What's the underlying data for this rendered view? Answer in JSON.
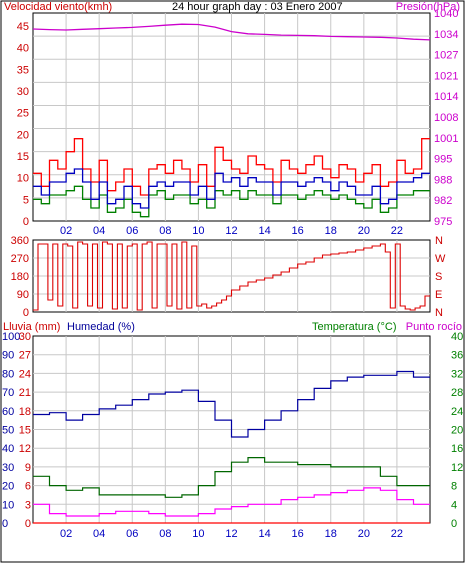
{
  "header": {
    "left_label": "Velocidad viento(kmh)",
    "title": "24 hour graph day : 03 Enero 2007",
    "right_label": "Presión(hPa)"
  },
  "lower_header": {
    "rain_label": "Lluvia (mm)",
    "humidity_label": "Humedad (%)",
    "temperature_label": "Temperatura (°C)",
    "dewpoint_label": "Punto rocío"
  },
  "colors": {
    "wind_gust": "#ff0000",
    "wind_avg": "#008000",
    "wind_speed": "#0000c0",
    "pressure": "#cc00cc",
    "direction": "#dd0000",
    "humidity": "#0000a0",
    "temperature": "#006600",
    "dewpoint": "#ff00ff",
    "rain": "#ff0000",
    "grid": "#c8c8c8",
    "plot_bg": "#ffffff",
    "page_bg": "#ffffff"
  },
  "chart_data": [
    {
      "type": "line",
      "name": "wind-pressure",
      "x_ticks": [
        "02",
        "04",
        "06",
        "08",
        "10",
        "12",
        "14",
        "16",
        "18",
        "20",
        "22"
      ],
      "x_range_hours": [
        0,
        24
      ],
      "y_left": {
        "label": "Velocidad viento(kmh)",
        "ticks": [
          0,
          5,
          10,
          15,
          20,
          25,
          30,
          35,
          40,
          45
        ],
        "range": [
          0,
          48
        ]
      },
      "y_right": {
        "label": "Presión(hPa)",
        "ticks": [
          975,
          982,
          988,
          995,
          1001,
          1008,
          1014,
          1021,
          1027,
          1034,
          1040
        ],
        "range": [
          975,
          1040
        ]
      },
      "series": [
        {
          "key": "gust",
          "color_key": "wind_gust",
          "axis": "left",
          "x": [
            0,
            0.5,
            1,
            1.5,
            2,
            2.5,
            3,
            3.5,
            4,
            4.5,
            5,
            5.5,
            6,
            6.5,
            7,
            7.5,
            8,
            8.5,
            9,
            9.5,
            10,
            10.5,
            11,
            11.5,
            12,
            12.5,
            13,
            13.5,
            14,
            14.5,
            15,
            15.5,
            16,
            16.5,
            17,
            17.5,
            18,
            18.5,
            19,
            19.5,
            20,
            20.5,
            21,
            21.5,
            22,
            22.5,
            23,
            23.5
          ],
          "values": [
            11,
            8,
            14,
            12,
            16,
            19,
            12,
            9,
            14,
            7,
            9,
            12,
            8,
            6,
            12,
            13,
            11,
            14,
            12,
            9,
            13,
            8,
            17,
            14,
            12,
            11,
            15,
            13,
            12,
            9,
            14,
            12,
            11,
            13,
            15,
            12,
            10,
            13,
            12,
            9,
            11,
            13,
            8,
            9,
            14,
            11,
            12,
            19
          ]
        },
        {
          "key": "average",
          "color_key": "wind_avg",
          "axis": "left",
          "x": [
            0,
            0.5,
            1,
            1.5,
            2,
            2.5,
            3,
            3.5,
            4,
            4.5,
            5,
            5.5,
            6,
            6.5,
            7,
            7.5,
            8,
            8.5,
            9,
            9.5,
            10,
            10.5,
            11,
            11.5,
            12,
            12.5,
            13,
            13.5,
            14,
            14.5,
            15,
            15.5,
            16,
            16.5,
            17,
            17.5,
            18,
            18.5,
            19,
            19.5,
            20,
            20.5,
            21,
            21.5,
            22,
            22.5,
            23,
            23.5
          ],
          "values": [
            5,
            4,
            6,
            6,
            7,
            8,
            5,
            3,
            6,
            2,
            3,
            5,
            2,
            1,
            6,
            7,
            5,
            6,
            6,
            4,
            5,
            3,
            7,
            6,
            7,
            5,
            7,
            6,
            6,
            4,
            6,
            6,
            5,
            6,
            7,
            6,
            5,
            6,
            5,
            4,
            3,
            5,
            2,
            3,
            6,
            6,
            7,
            7
          ]
        },
        {
          "key": "speed",
          "color_key": "wind_speed",
          "axis": "left",
          "x": [
            0,
            0.5,
            1,
            1.5,
            2,
            2.5,
            3,
            3.5,
            4,
            4.5,
            5,
            5.5,
            6,
            6.5,
            7,
            7.5,
            8,
            8.5,
            9,
            9.5,
            10,
            10.5,
            11,
            11.5,
            12,
            12.5,
            13,
            13.5,
            14,
            14.5,
            15,
            15.5,
            16,
            16.5,
            17,
            17.5,
            18,
            18.5,
            19,
            19.5,
            20,
            20.5,
            21,
            21.5,
            22,
            22.5,
            23,
            23.5
          ],
          "values": [
            8,
            6,
            9,
            9,
            11,
            12,
            9,
            5,
            9,
            4,
            5,
            8,
            4,
            3,
            8,
            9,
            8,
            9,
            9,
            6,
            8,
            5,
            11,
            9,
            10,
            8,
            10,
            9,
            9,
            6,
            9,
            9,
            8,
            9,
            10,
            9,
            7,
            9,
            8,
            6,
            6,
            8,
            4,
            5,
            9,
            9,
            10,
            11
          ]
        },
        {
          "key": "pressure",
          "color_key": "pressure",
          "axis": "right",
          "x": [
            0,
            1,
            2,
            3,
            4,
            5,
            6,
            7,
            8,
            9,
            10,
            11,
            12,
            13,
            14,
            15,
            16,
            17,
            18,
            19,
            20,
            21,
            22,
            23,
            24
          ],
          "values": [
            1035,
            1034.8,
            1034.7,
            1034.9,
            1035.1,
            1035.3,
            1035.5,
            1035.8,
            1036.2,
            1036.5,
            1036.4,
            1035.6,
            1034.2,
            1033.5,
            1033.3,
            1033.1,
            1033.0,
            1032.9,
            1032.7,
            1032.6,
            1032.5,
            1032.4,
            1032.2,
            1031.8,
            1031.6
          ]
        }
      ]
    },
    {
      "type": "line",
      "name": "wind-direction",
      "x_range_hours": [
        0,
        24
      ],
      "y_left": {
        "ticks": [
          0,
          90,
          180,
          270,
          360
        ],
        "range": [
          0,
          360
        ]
      },
      "y_right": {
        "ticks": [
          "N",
          "E",
          "S",
          "W",
          "N"
        ]
      },
      "series": [
        {
          "key": "direction",
          "color_key": "direction",
          "x": [
            0,
            0.3,
            0.6,
            0.9,
            1.2,
            1.5,
            1.8,
            2.1,
            2.4,
            2.7,
            3.0,
            3.3,
            3.6,
            3.9,
            4.2,
            4.5,
            4.8,
            5.1,
            5.4,
            5.7,
            6.0,
            6.3,
            6.6,
            6.9,
            7.2,
            7.5,
            7.8,
            8.1,
            8.4,
            8.7,
            9.0,
            9.3,
            9.6,
            9.9,
            10.2,
            10.5,
            10.8,
            11.1,
            11.4,
            11.7,
            12.0,
            12.5,
            13,
            13.5,
            14,
            14.5,
            15,
            15.5,
            16,
            16.5,
            17,
            17.5,
            18,
            18.5,
            19,
            19.5,
            20,
            20.5,
            21,
            21.3,
            21.6,
            21.9,
            22.2,
            22.5,
            22.8,
            23.1,
            23.4,
            23.7
          ],
          "values": [
            10,
            340,
            340,
            60,
            340,
            30,
            340,
            330,
            20,
            350,
            340,
            30,
            340,
            20,
            350,
            340,
            15,
            340,
            20,
            330,
            340,
            10,
            340,
            350,
            20,
            340,
            340,
            30,
            340,
            15,
            350,
            20,
            330,
            30,
            40,
            20,
            30,
            45,
            60,
            80,
            110,
            130,
            150,
            160,
            170,
            185,
            200,
            220,
            240,
            250,
            270,
            285,
            290,
            295,
            300,
            310,
            320,
            330,
            340,
            300,
            20,
            340,
            30,
            15,
            10,
            20,
            30,
            80
          ]
        }
      ]
    },
    {
      "type": "line",
      "name": "rain-humidity-temperature",
      "x_ticks": [
        "02",
        "04",
        "06",
        "08",
        "10",
        "12",
        "14",
        "16",
        "18",
        "20",
        "22"
      ],
      "x_range_hours": [
        0,
        24
      ],
      "y_left_outer": {
        "label": "Lluvia (mm)",
        "ticks": [
          0,
          10,
          20,
          30,
          40,
          50,
          60,
          70,
          80,
          90,
          100
        ],
        "range": [
          0,
          100
        ]
      },
      "y_left_inner": {
        "label": "Humedad (%)",
        "ticks": [
          0,
          3,
          6,
          9,
          12,
          15,
          18,
          21,
          24,
          27,
          30
        ],
        "range": [
          0,
          30
        ]
      },
      "y_right": {
        "label": "Temperatura (°C)",
        "ticks": [
          0,
          4,
          8,
          12,
          16,
          20,
          24,
          28,
          32,
          36,
          40
        ],
        "range": [
          0,
          40
        ]
      },
      "series": [
        {
          "key": "humidity",
          "color_key": "humidity",
          "axis": "left_outer",
          "x": [
            0,
            1,
            2,
            3,
            4,
            5,
            6,
            7,
            8,
            9,
            10,
            11,
            12,
            13,
            14,
            15,
            16,
            17,
            18,
            19,
            20,
            21,
            22,
            23,
            24
          ],
          "values": [
            58,
            59,
            55,
            58,
            61,
            63,
            66,
            69,
            70,
            71,
            65,
            55,
            46,
            50,
            55,
            60,
            66,
            72,
            76,
            78,
            79,
            79,
            81,
            78,
            78
          ]
        },
        {
          "key": "temperature",
          "color_key": "temperature",
          "axis": "right",
          "x": [
            0,
            1,
            2,
            3,
            4,
            5,
            6,
            7,
            8,
            9,
            10,
            11,
            12,
            13,
            14,
            15,
            16,
            17,
            18,
            19,
            20,
            21,
            22,
            23,
            24
          ],
          "values": [
            10,
            8,
            7,
            7.5,
            6,
            6,
            6,
            6,
            5.5,
            6,
            8,
            11,
            13,
            14,
            13,
            13,
            12.5,
            12.5,
            12,
            12,
            12,
            10,
            8,
            8,
            8
          ]
        },
        {
          "key": "dewpoint",
          "color_key": "dewpoint",
          "axis": "right",
          "x": [
            0,
            1,
            2,
            3,
            4,
            5,
            6,
            7,
            8,
            9,
            10,
            11,
            12,
            13,
            14,
            15,
            16,
            17,
            18,
            19,
            20,
            21,
            22,
            23,
            24
          ],
          "values": [
            4,
            2,
            1.5,
            1.5,
            2,
            2.5,
            2.5,
            2,
            1.5,
            1.5,
            2,
            3,
            3.5,
            4,
            4,
            5,
            5.5,
            6,
            6.5,
            7,
            7.5,
            7,
            5,
            4,
            4
          ]
        },
        {
          "key": "rain",
          "color_key": "rain",
          "axis": "left_inner",
          "x": [
            0,
            24
          ],
          "values": [
            0,
            0
          ]
        }
      ]
    }
  ]
}
